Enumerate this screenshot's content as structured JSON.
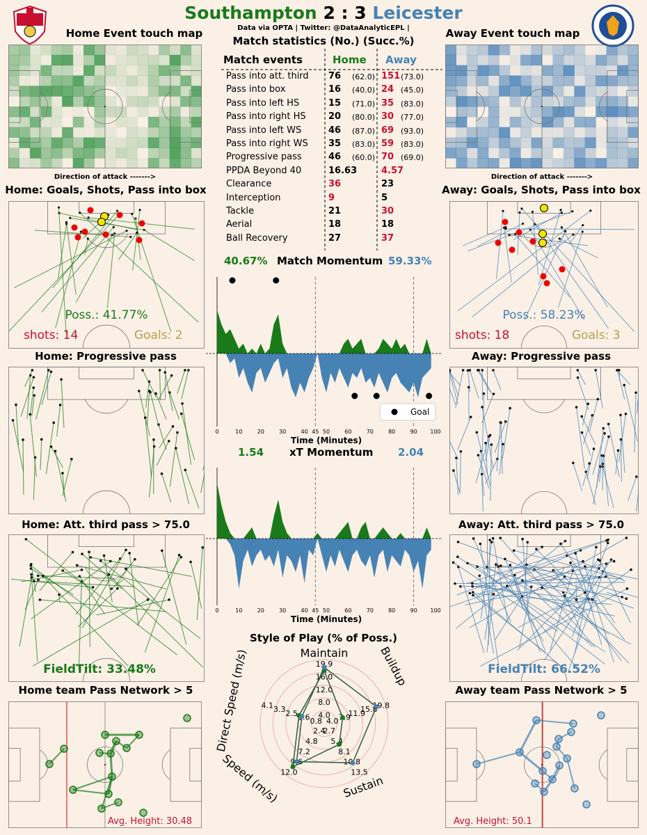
{
  "header": {
    "home_team": "Southampton",
    "score": "2 : 3",
    "away_team": "Leicester",
    "credit": "Data via OPTA | Twitter: @DataAnalyticEPL |",
    "home_crest": "southampton-crest",
    "away_crest": "leicester-crest"
  },
  "colors": {
    "home": "#1a7a1a",
    "away": "#4682b4",
    "highlight": "#c8102e",
    "background": "#faf0e6"
  },
  "panels": {
    "home_touch": "Home Event touch map",
    "away_touch": "Away Event touch map",
    "direction": "Direction of attack ------->",
    "home_shots": "Home: Goals, Shots, Pass into box",
    "away_shots": "Away: Goals, Shots, Pass into box",
    "home_prog": "Home: Progressive pass",
    "away_prog": "Away: Progressive pass",
    "home_att": "Home: Att. third pass > 75.0",
    "away_att": "Away: Att. third pass > 75.0",
    "home_network": "Home team Pass Network > 5",
    "away_network": "Away team Pass Network > 5"
  },
  "home_summary": {
    "poss": "Poss.: 41.77%",
    "shots": "shots: 14",
    "goals": "Goals: 2",
    "fieldtilt": "FieldTilt: 33.48%",
    "avg_height": "Avg. Height: 30.48"
  },
  "away_summary": {
    "poss": "Poss.: 58.23%",
    "shots": "shots: 18",
    "goals": "Goals: 3",
    "fieldtilt": "FieldTilt: 66.52%",
    "avg_height": "Avg. Height: 50.1"
  },
  "stats": {
    "title": "Match statistics (No.) (Succ.%)",
    "col_events": "Match events",
    "col_home": "Home",
    "col_away": "Away",
    "rows": [
      {
        "event": "Pass into att. third",
        "home": "76",
        "home_succ": "(62.0)",
        "away": "151",
        "away_succ": "(73.0)",
        "winner": "away"
      },
      {
        "event": "Pass into box",
        "home": "16",
        "home_succ": "(40.0)",
        "away": "24",
        "away_succ": "(45.0)",
        "winner": "away"
      },
      {
        "event": "Pass into left HS",
        "home": "15",
        "home_succ": "(71.0)",
        "away": "35",
        "away_succ": "(83.0)",
        "winner": "away"
      },
      {
        "event": "Pass into right HS",
        "home": "20",
        "home_succ": "(80.0)",
        "away": "30",
        "away_succ": "(77.0)",
        "winner": "away"
      },
      {
        "event": "Pass into left WS",
        "home": "46",
        "home_succ": "(87.0)",
        "away": "69",
        "away_succ": "(93.0)",
        "winner": "away"
      },
      {
        "event": "Pass into right WS",
        "home": "35",
        "home_succ": "(83.0)",
        "away": "59",
        "away_succ": "(83.0)",
        "winner": "away"
      },
      {
        "event": "Progressive pass",
        "home": "46",
        "home_succ": "(60.0)",
        "away": "70",
        "away_succ": "(69.0)",
        "winner": "away"
      },
      {
        "event": "PPDA Beyond 40",
        "home": "16.63",
        "home_succ": "",
        "away": "4.57",
        "away_succ": "",
        "winner": "away"
      },
      {
        "event": "Clearance",
        "home": "36",
        "home_succ": "",
        "away": "23",
        "away_succ": "",
        "winner": "home"
      },
      {
        "event": "Interception",
        "home": "9",
        "home_succ": "",
        "away": "5",
        "away_succ": "",
        "winner": "home"
      },
      {
        "event": "Tackle",
        "home": "21",
        "home_succ": "",
        "away": "30",
        "away_succ": "",
        "winner": "away"
      },
      {
        "event": "Aerial",
        "home": "18",
        "home_succ": "",
        "away": "18",
        "away_succ": "",
        "winner": "none"
      },
      {
        "event": "Ball Recovery",
        "home": "27",
        "home_succ": "",
        "away": "37",
        "away_succ": "",
        "winner": "away"
      }
    ]
  },
  "momentum": {
    "title": "Match Momentum",
    "home_pct": "40.67%",
    "away_pct": "59.33%",
    "xlabel": "Time (Minutes)",
    "legend": "Goal",
    "ticks": [
      "0",
      "10",
      "20",
      "30",
      "40",
      "45",
      "50",
      "60",
      "70",
      "80",
      "90",
      "100"
    ],
    "home_goals": [
      7,
      27
    ],
    "away_goals": [
      63,
      73,
      97
    ]
  },
  "xt": {
    "title": "xT Momentum",
    "home_val": "1.54",
    "away_val": "2.04",
    "xlabel": "Time (Minutes)",
    "ticks": [
      "0",
      "10",
      "20",
      "30",
      "40",
      "45",
      "50",
      "60",
      "70",
      "80",
      "90",
      "100"
    ]
  },
  "radar": {
    "title": "Style of Play (% of Poss.)",
    "axes": [
      "Maintain",
      "Buildup",
      "Sustain",
      "Speed (m/s)",
      "Direct Speed (m/s)"
    ],
    "ticks": [
      [
        "4.0",
        "8.0",
        "12.0",
        "16.0",
        "19.9"
      ],
      [
        "4.0",
        "7.9",
        "11.9",
        "15.8",
        "19.8"
      ],
      [
        "2.7",
        "5.4",
        "8.1",
        "10.8",
        "13.5"
      ],
      [
        "2.4",
        "4.8",
        "7.2",
        "9.6",
        "12.0"
      ],
      [
        "0.8",
        "1.6",
        "2.5",
        "3.3",
        "4.1"
      ]
    ]
  },
  "chart_data": [
    {
      "type": "area",
      "title": "Match Momentum",
      "xlabel": "Time (Minutes)",
      "xlim": [
        0,
        100
      ],
      "x": [
        0,
        2,
        4,
        6,
        8,
        10,
        12,
        14,
        16,
        18,
        20,
        22,
        24,
        26,
        28,
        30,
        32,
        34,
        36,
        38,
        40,
        42,
        44,
        46,
        48,
        50,
        52,
        54,
        56,
        58,
        60,
        62,
        64,
        66,
        68,
        70,
        72,
        74,
        76,
        78,
        80,
        82,
        84,
        86,
        88,
        90,
        92,
        94,
        96,
        98
      ],
      "series": [
        {
          "name": "Southampton",
          "values": [
            0.9,
            0.6,
            0.4,
            0.5,
            0.3,
            0.1,
            0.2,
            0,
            0.1,
            0,
            0.2,
            0,
            0.1,
            0.6,
            0.8,
            0.2,
            0,
            0,
            0,
            0,
            0,
            0,
            0,
            0,
            0,
            0,
            0,
            0,
            0,
            0.2,
            0.3,
            0.1,
            0.2,
            0.3,
            0,
            0,
            0,
            0.1,
            0.3,
            0.2,
            0.1,
            0.3,
            0.1,
            0.2,
            0,
            0,
            0,
            0,
            0.3,
            0
          ]
        },
        {
          "name": "Leicester",
          "values": [
            0,
            0,
            0,
            -0.2,
            -0.1,
            -0.5,
            -0.3,
            -0.6,
            -0.8,
            -0.4,
            -0.3,
            -0.6,
            -0.4,
            -0.2,
            -0.1,
            -0.5,
            -0.3,
            -0.7,
            -0.9,
            -0.6,
            -0.8,
            -0.5,
            -0.3,
            0,
            -0.5,
            -0.8,
            -0.4,
            -0.6,
            -0.3,
            -0.5,
            -0.7,
            -0.4,
            -0.5,
            -0.3,
            -0.6,
            -0.5,
            -0.7,
            -0.4,
            -0.6,
            -0.8,
            -0.5,
            -0.4,
            -0.6,
            -0.7,
            -0.8,
            -0.6,
            -0.9,
            -0.5,
            -0.4,
            -0.3
          ]
        }
      ],
      "goals": [
        {
          "team": "Southampton",
          "minute": 7
        },
        {
          "team": "Southampton",
          "minute": 27
        },
        {
          "team": "Leicester",
          "minute": 63
        },
        {
          "team": "Leicester",
          "minute": 73
        },
        {
          "team": "Leicester",
          "minute": 97
        }
      ],
      "legend": "Goal"
    },
    {
      "type": "area",
      "title": "xT Momentum",
      "xlabel": "Time (Minutes)",
      "xlim": [
        0,
        100
      ],
      "x": [
        0,
        2,
        4,
        6,
        8,
        10,
        12,
        14,
        16,
        18,
        20,
        22,
        24,
        26,
        28,
        30,
        32,
        34,
        36,
        38,
        40,
        42,
        44,
        46,
        48,
        50,
        52,
        54,
        56,
        58,
        60,
        62,
        64,
        66,
        68,
        70,
        72,
        74,
        76,
        78,
        80,
        82,
        84,
        86,
        88,
        90,
        92,
        94,
        96,
        98
      ],
      "series": [
        {
          "name": "Southampton",
          "values": [
            1.0,
            0.6,
            0.3,
            0.1,
            0,
            0,
            0,
            0.1,
            0.2,
            0,
            0,
            0,
            0,
            0.4,
            0.7,
            0.3,
            0.1,
            0,
            0,
            0,
            0,
            0,
            0,
            0.1,
            0,
            0,
            0,
            0,
            0.1,
            0.2,
            0.3,
            0,
            0,
            0.2,
            0.3,
            0,
            0,
            0.1,
            0.2,
            0.1,
            0,
            0,
            0.1,
            0,
            0,
            0,
            0,
            0,
            0.2,
            0
          ]
        },
        {
          "name": "Leicester",
          "values": [
            0,
            0,
            0,
            -0.1,
            -0.3,
            -0.9,
            -0.4,
            -0.2,
            -0.5,
            -0.3,
            -0.2,
            -0.4,
            -0.3,
            -0.5,
            -0.2,
            -0.7,
            -0.3,
            -0.4,
            -0.6,
            -0.3,
            -0.8,
            -0.2,
            -0.3,
            0,
            -0.3,
            -0.6,
            -0.3,
            -0.5,
            -0.2,
            -0.4,
            -0.6,
            -0.3,
            -0.2,
            -0.4,
            -0.5,
            -0.3,
            -0.7,
            -0.3,
            -0.2,
            -0.6,
            -0.3,
            -0.4,
            -0.5,
            -0.2,
            -0.3,
            -0.6,
            -0.4,
            -0.9,
            -0.3,
            -0.2
          ]
        }
      ]
    },
    {
      "type": "radar",
      "title": "Style of Play (% of Poss.)",
      "axes": [
        "Maintain",
        "Buildup",
        "Sustain",
        "Speed (m/s)",
        "Direct Speed (m/s)"
      ],
      "axis_max": [
        19.9,
        19.8,
        13.5,
        12.0,
        4.1
      ],
      "series": [
        {
          "name": "Southampton",
          "values": [
            16.5,
            6.0,
            5.4,
            10.0,
            1.7
          ]
        },
        {
          "name": "Leicester",
          "values": [
            17.5,
            17.0,
            10.2,
            8.8,
            1.5
          ]
        }
      ]
    }
  ]
}
